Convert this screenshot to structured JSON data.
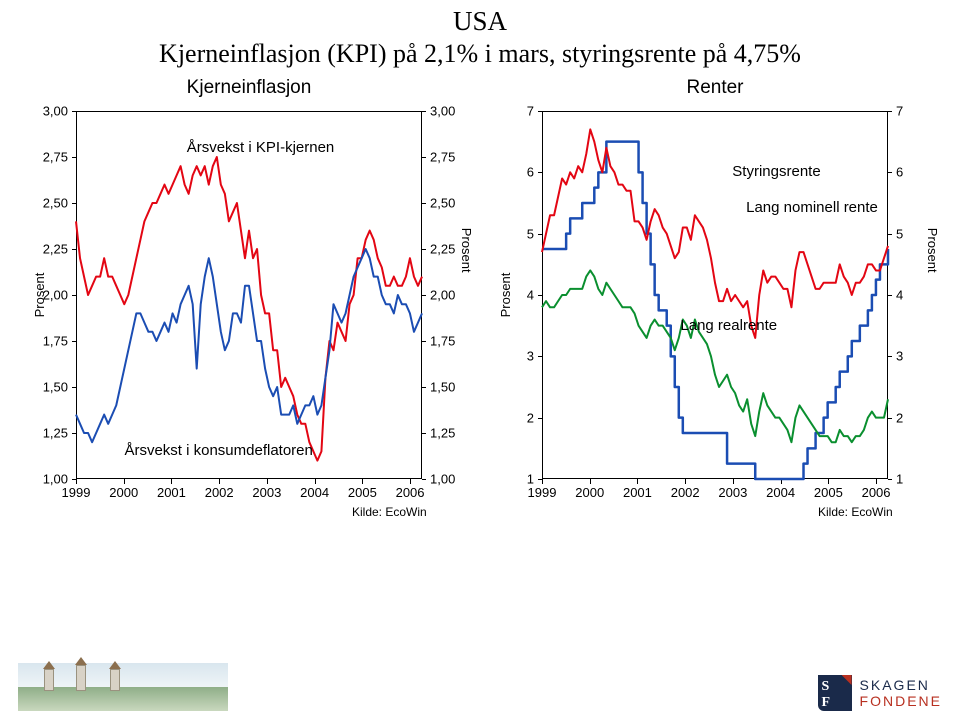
{
  "title_line1": "USA",
  "title_line2": "Kjerneinflasjon (KPI) på 2,1% i mars, styringsrente på 4,75%",
  "source_label": "Kilde: EcoWin",
  "left_chart": {
    "title": "Kjerneinflasjon",
    "type": "line",
    "ylabel": "Prosent",
    "ylim": [
      1.0,
      3.0
    ],
    "ytick_step": 0.25,
    "yticks": [
      "1,00",
      "1,25",
      "1,50",
      "1,75",
      "2,00",
      "2,25",
      "2,50",
      "2,75",
      "3,00"
    ],
    "years": [
      "1999",
      "2000",
      "2001",
      "2002",
      "2003",
      "2004",
      "2005",
      "2006"
    ],
    "series": {
      "kpi": {
        "label": "Årsvekst i KPI-kjernen",
        "color": "#e30613",
        "width": 2,
        "annotation_xy": [
          0.32,
          0.075
        ],
        "data": [
          2.4,
          2.2,
          2.1,
          2.0,
          2.05,
          2.1,
          2.1,
          2.2,
          2.1,
          2.1,
          2.05,
          2.0,
          1.95,
          2.0,
          2.1,
          2.2,
          2.3,
          2.4,
          2.45,
          2.5,
          2.5,
          2.55,
          2.6,
          2.55,
          2.6,
          2.65,
          2.7,
          2.6,
          2.55,
          2.65,
          2.7,
          2.65,
          2.7,
          2.6,
          2.7,
          2.75,
          2.6,
          2.55,
          2.4,
          2.45,
          2.5,
          2.35,
          2.2,
          2.35,
          2.2,
          2.25,
          2.0,
          1.9,
          1.9,
          1.7,
          1.7,
          1.5,
          1.55,
          1.5,
          1.45,
          1.35,
          1.3,
          1.3,
          1.2,
          1.15,
          1.1,
          1.15,
          1.55,
          1.75,
          1.7,
          1.85,
          1.8,
          1.75,
          1.95,
          2.0,
          2.2,
          2.2,
          2.3,
          2.35,
          2.3,
          2.2,
          2.15,
          2.05,
          2.05,
          2.1,
          2.05,
          2.05,
          2.1,
          2.2,
          2.1,
          2.05,
          2.1
        ]
      },
      "deflator": {
        "label": "Årsvekst i konsumdeflatoren",
        "color": "#1b4db3",
        "width": 2,
        "annotation_xy": [
          0.14,
          0.9
        ],
        "data": [
          1.35,
          1.3,
          1.25,
          1.25,
          1.2,
          1.25,
          1.3,
          1.35,
          1.3,
          1.35,
          1.4,
          1.5,
          1.6,
          1.7,
          1.8,
          1.9,
          1.9,
          1.85,
          1.8,
          1.8,
          1.75,
          1.8,
          1.85,
          1.8,
          1.9,
          1.85,
          1.95,
          2.0,
          2.05,
          1.95,
          1.6,
          1.95,
          2.1,
          2.2,
          2.1,
          1.95,
          1.8,
          1.7,
          1.75,
          1.9,
          1.9,
          1.85,
          2.05,
          2.05,
          1.9,
          1.75,
          1.75,
          1.6,
          1.5,
          1.45,
          1.5,
          1.35,
          1.35,
          1.35,
          1.4,
          1.3,
          1.35,
          1.4,
          1.4,
          1.45,
          1.35,
          1.4,
          1.55,
          1.7,
          1.95,
          1.9,
          1.85,
          1.9,
          2.0,
          2.1,
          2.15,
          2.2,
          2.25,
          2.2,
          2.1,
          2.1,
          2.0,
          1.95,
          1.95,
          1.9,
          2.0,
          1.95,
          1.95,
          1.9,
          1.8,
          1.85,
          1.9
        ]
      }
    }
  },
  "right_chart": {
    "title": "Renter",
    "type": "line",
    "ylabel": "Prosent",
    "ylim": [
      1,
      7
    ],
    "ytick_step": 1,
    "yticks": [
      "1",
      "2",
      "3",
      "4",
      "5",
      "6",
      "7"
    ],
    "years": [
      "1999",
      "2000",
      "2001",
      "2002",
      "2003",
      "2004",
      "2005",
      "2006"
    ],
    "series": {
      "policy": {
        "label": "Styringsrente",
        "color": "#1b4db3",
        "width": 2.5,
        "step": true,
        "annotation_xy": [
          0.55,
          0.14
        ],
        "data": [
          4.75,
          4.75,
          4.75,
          4.75,
          4.75,
          4.75,
          5.0,
          5.25,
          5.25,
          5.25,
          5.5,
          5.5,
          5.5,
          5.75,
          6.0,
          6.0,
          6.5,
          6.5,
          6.5,
          6.5,
          6.5,
          6.5,
          6.5,
          6.5,
          6.0,
          5.5,
          5.0,
          4.5,
          4.0,
          3.75,
          3.75,
          3.5,
          3.0,
          2.5,
          2.0,
          1.75,
          1.75,
          1.75,
          1.75,
          1.75,
          1.75,
          1.75,
          1.75,
          1.75,
          1.75,
          1.75,
          1.25,
          1.25,
          1.25,
          1.25,
          1.25,
          1.25,
          1.25,
          1.0,
          1.0,
          1.0,
          1.0,
          1.0,
          1.0,
          1.0,
          1.0,
          1.0,
          1.0,
          1.0,
          1.0,
          1.25,
          1.5,
          1.5,
          1.75,
          1.75,
          2.0,
          2.25,
          2.25,
          2.5,
          2.75,
          2.75,
          3.0,
          3.25,
          3.25,
          3.5,
          3.5,
          3.75,
          4.0,
          4.25,
          4.5,
          4.5,
          4.75
        ]
      },
      "nominal": {
        "label": "Lang nominell rente",
        "color": "#e30613",
        "width": 2,
        "annotation_xy": [
          0.59,
          0.24
        ],
        "data": [
          4.7,
          5.0,
          5.3,
          5.3,
          5.6,
          5.9,
          5.8,
          6.0,
          5.9,
          6.1,
          6.0,
          6.3,
          6.7,
          6.5,
          6.2,
          6.0,
          6.4,
          6.1,
          6.0,
          5.8,
          5.8,
          5.7,
          5.7,
          5.2,
          5.2,
          5.1,
          4.9,
          5.2,
          5.4,
          5.3,
          5.1,
          5.0,
          4.8,
          4.6,
          4.7,
          5.1,
          5.1,
          4.9,
          5.3,
          5.2,
          5.1,
          4.9,
          4.6,
          4.2,
          3.9,
          3.9,
          4.1,
          3.9,
          4.0,
          3.9,
          3.8,
          3.9,
          3.5,
          3.3,
          4.0,
          4.4,
          4.2,
          4.3,
          4.3,
          4.2,
          4.1,
          4.1,
          3.8,
          4.4,
          4.7,
          4.7,
          4.5,
          4.3,
          4.1,
          4.1,
          4.2,
          4.2,
          4.2,
          4.2,
          4.5,
          4.3,
          4.2,
          4.0,
          4.2,
          4.2,
          4.3,
          4.5,
          4.5,
          4.4,
          4.4,
          4.6,
          4.8
        ]
      },
      "real": {
        "label": "Lang realrente",
        "color": "#0a8f2f",
        "width": 2,
        "annotation_xy": [
          0.4,
          0.56
        ],
        "data": [
          3.8,
          3.9,
          3.8,
          3.8,
          3.9,
          4.0,
          4.0,
          4.1,
          4.1,
          4.1,
          4.1,
          4.3,
          4.4,
          4.3,
          4.1,
          4.0,
          4.2,
          4.1,
          4.0,
          3.9,
          3.8,
          3.8,
          3.8,
          3.7,
          3.5,
          3.4,
          3.3,
          3.5,
          3.6,
          3.5,
          3.5,
          3.4,
          3.3,
          3.1,
          3.3,
          3.6,
          3.5,
          3.3,
          3.6,
          3.4,
          3.3,
          3.2,
          3.0,
          2.7,
          2.5,
          2.6,
          2.7,
          2.5,
          2.4,
          2.2,
          2.1,
          2.3,
          1.9,
          1.7,
          2.1,
          2.4,
          2.2,
          2.1,
          2.0,
          2.0,
          1.9,
          1.8,
          1.6,
          2.0,
          2.2,
          2.1,
          2.0,
          1.9,
          1.8,
          1.7,
          1.7,
          1.7,
          1.6,
          1.6,
          1.8,
          1.7,
          1.7,
          1.6,
          1.7,
          1.7,
          1.8,
          2.0,
          2.1,
          2.0,
          2.0,
          2.0,
          2.3
        ]
      }
    }
  },
  "brand": {
    "name_a": "SKAGEN",
    "name_b": "FONDENE"
  }
}
